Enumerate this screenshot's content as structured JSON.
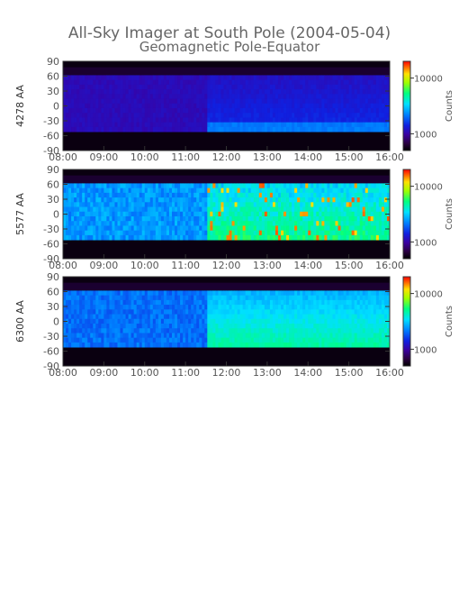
{
  "title": "All-Sky Imager at South Pole (2004-05-04)",
  "subtitle": "Geomagnetic Pole-Equator",
  "chart_data": [
    {
      "type": "heatmap",
      "panel": "4278 AA",
      "ylabel": "4278 AA",
      "x_ticks": [
        "08:00",
        "09:00",
        "10:00",
        "11:00",
        "12:00",
        "13:00",
        "14:00",
        "15:00",
        "16:00"
      ],
      "xlim": [
        "08:00",
        "16:00"
      ],
      "y_ticks": [
        90,
        60,
        30,
        0,
        -30,
        -60,
        -90
      ],
      "ylim": [
        -90,
        90
      ],
      "data_lat_range": [
        -52,
        62
      ],
      "colorbar": {
        "label": "Counts",
        "ticks": [
          10000,
          1000
        ],
        "scale": "log"
      },
      "intensity_profile": {
        "before_1130": "low (~700-900 counts)",
        "after_1130": "low to moderate, brighter near -50 (~1000-1500 counts)"
      }
    },
    {
      "type": "heatmap",
      "panel": "5577 AA",
      "ylabel": "5577 AA",
      "x_ticks": [
        "08:00",
        "09:00",
        "10:00",
        "11:00",
        "12:00",
        "13:00",
        "14:00",
        "15:00",
        "16:00"
      ],
      "xlim": [
        "08:00",
        "16:00"
      ],
      "y_ticks": [
        90,
        60,
        30,
        0,
        -30,
        -60,
        -90
      ],
      "ylim": [
        -90,
        90
      ],
      "data_lat_range": [
        -52,
        62
      ],
      "colorbar": {
        "label": "Counts",
        "ticks": [
          10000,
          1000
        ],
        "scale": "log"
      },
      "intensity_profile": {
        "before_1130": "moderate (~1500-2500 counts)",
        "after_1130": "bright with discrete arcs (~3000-15000 counts)"
      }
    },
    {
      "type": "heatmap",
      "panel": "6300 AA",
      "ylabel": "6300 AA",
      "x_ticks": [
        "08:00",
        "09:00",
        "10:00",
        "11:00",
        "12:00",
        "13:00",
        "14:00",
        "15:00",
        "16:00"
      ],
      "xlim": [
        "08:00",
        "16:00"
      ],
      "y_ticks": [
        90,
        60,
        30,
        0,
        -30,
        -60,
        -90
      ],
      "ylim": [
        -90,
        90
      ],
      "data_lat_range": [
        -52,
        62
      ],
      "colorbar": {
        "label": "Counts",
        "ticks": [
          10000,
          1000
        ],
        "scale": "log"
      },
      "intensity_profile": {
        "before_1130": "moderate (~1200-2000 counts)",
        "after_1130": "brighter, peaking near -40 (~2500-5000 counts)"
      }
    }
  ]
}
